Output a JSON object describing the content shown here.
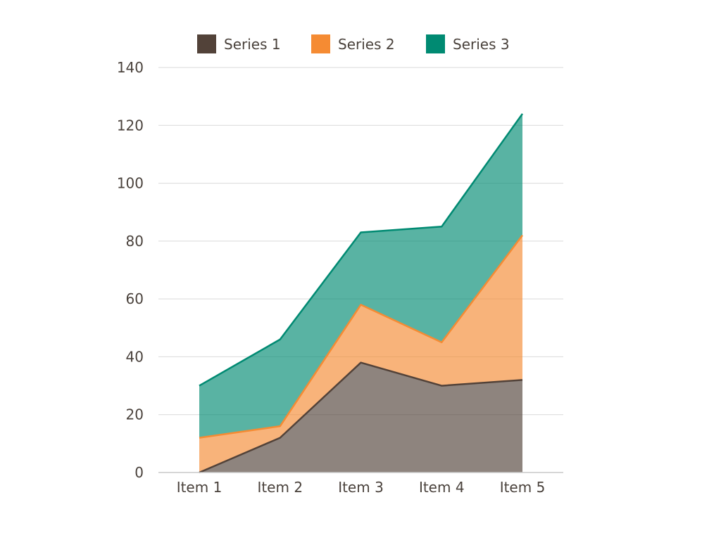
{
  "chart_data": {
    "type": "area",
    "stacked": true,
    "categories": [
      "Item 1",
      "Item 2",
      "Item 3",
      "Item 4",
      "Item 5"
    ],
    "series": [
      {
        "name": "Series 1",
        "values": [
          0,
          12,
          38,
          30,
          32
        ],
        "color": "#524239"
      },
      {
        "name": "Series 2",
        "values": [
          12,
          4,
          20,
          15,
          50
        ],
        "color": "#f58b33"
      },
      {
        "name": "Series 3",
        "values": [
          18,
          30,
          25,
          40,
          42
        ],
        "color": "#008a72"
      }
    ],
    "y_ticks": [
      "0",
      "20",
      "40",
      "60",
      "80",
      "100",
      "120",
      "140"
    ],
    "ylim": [
      0,
      140
    ],
    "grid": true,
    "legend_position": "top"
  }
}
